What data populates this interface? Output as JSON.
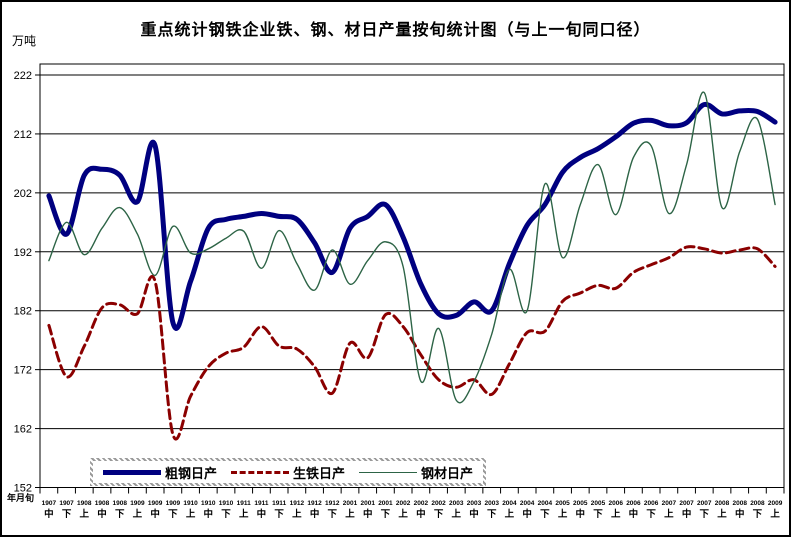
{
  "title": "重点统计钢铁企业铁、钢、材日产量按旬统计图（与上一旬同口径）",
  "y_axis": {
    "unit": "万吨",
    "min": 152,
    "max": 222,
    "step": 10
  },
  "x_axis": {
    "title": "年月旬",
    "months": [
      "1907",
      "1907",
      "1908",
      "1908",
      "1908",
      "1909",
      "1909",
      "1909",
      "1910",
      "1910",
      "1910",
      "1911",
      "1911",
      "1911",
      "1912",
      "1912",
      "1912",
      "2001",
      "2001",
      "2001",
      "2002",
      "2002",
      "2002",
      "2003",
      "2003",
      "2003",
      "2004",
      "2004",
      "2004",
      "2005",
      "2005",
      "2005",
      "2006",
      "2006",
      "2006",
      "2007",
      "2007",
      "2007",
      "2008",
      "2008",
      "2008",
      "2009"
    ],
    "xun": [
      "中",
      "下",
      "上",
      "中",
      "下",
      "上",
      "中",
      "下",
      "上",
      "中",
      "下",
      "上",
      "中",
      "下",
      "上",
      "中",
      "下",
      "上",
      "中",
      "下",
      "上",
      "中",
      "下",
      "上",
      "中",
      "下",
      "上",
      "中",
      "下",
      "上",
      "中",
      "下",
      "上",
      "中",
      "下",
      "上",
      "中",
      "下",
      "上",
      "中",
      "下",
      "上"
    ]
  },
  "legend": {
    "items": [
      {
        "label": "粗钢日产",
        "color": "#000080",
        "style": "solid",
        "thickness": 5
      },
      {
        "label": "生铁日产",
        "color": "#8B0000",
        "style": "dashed",
        "thickness": 3
      },
      {
        "label": "钢材日产",
        "color": "#2D6446",
        "style": "solid",
        "thickness": 1.4
      }
    ]
  },
  "chart_data": {
    "type": "line",
    "title": "重点统计钢铁企业铁、钢、材日产量按旬统计图（与上一旬同口径）",
    "ylabel": "万吨",
    "xlabel": "年月旬",
    "ylim": [
      152,
      222
    ],
    "grid": true,
    "legend_position": "bottom-inside",
    "x": [
      "1907中",
      "1907下",
      "1908上",
      "1908中",
      "1908下",
      "1909上",
      "1909中",
      "1909下",
      "1910上",
      "1910中",
      "1910下",
      "1911上",
      "1911中",
      "1911下",
      "1912上",
      "1912中",
      "1912下",
      "2001上",
      "2001中",
      "2001下",
      "2002上",
      "2002中",
      "2002下",
      "2003上",
      "2003中",
      "2003下",
      "2004上",
      "2004中",
      "2004下",
      "2005上",
      "2005中",
      "2005下",
      "2006上",
      "2006中",
      "2006下",
      "2007上",
      "2007中",
      "2007下",
      "2008上",
      "2008中",
      "2008下",
      "2009上"
    ],
    "series": [
      {
        "name": "粗钢日产",
        "color": "#000080",
        "dash": "solid",
        "width": 5,
        "values": [
          201.5,
          195,
          205,
          206,
          205,
          200.5,
          210,
          180,
          187,
          196,
          197.5,
          198,
          198.5,
          198,
          197.5,
          193.5,
          188.5,
          196,
          198,
          200,
          194.5,
          186.5,
          181.5,
          181.2,
          183.5,
          182,
          190,
          196.5,
          200,
          205.5,
          208,
          209.5,
          211.5,
          213.8,
          214.3,
          213.4,
          213.9,
          217,
          215.4,
          215.9,
          215.8,
          214
        ]
      },
      {
        "name": "生铁日产",
        "color": "#8B0000",
        "dash": "dashed",
        "width": 3,
        "values": [
          179.5,
          170.8,
          176,
          182.5,
          183,
          181.5,
          187,
          161,
          167.5,
          172.5,
          174.8,
          175.8,
          179.3,
          176,
          175.5,
          172.5,
          168,
          176.5,
          174,
          181.3,
          179.3,
          174.5,
          170.3,
          169,
          170.3,
          167.8,
          173,
          178.3,
          178.5,
          183.6,
          185,
          186.3,
          185.8,
          188.5,
          189.8,
          191,
          192.8,
          192.5,
          191.8,
          192.3,
          192.5,
          189.5
        ]
      },
      {
        "name": "钢材日产",
        "color": "#2D6446",
        "dash": "solid",
        "width": 1.4,
        "values": [
          190.5,
          197,
          191.5,
          196,
          199.5,
          195,
          188,
          196.3,
          191.8,
          192.5,
          194.3,
          195.5,
          189.2,
          195.6,
          190,
          185.5,
          192.3,
          186.5,
          190.5,
          193.7,
          189.5,
          170,
          179,
          166.8,
          170,
          178,
          189,
          182,
          203.5,
          191,
          200,
          206.8,
          198.3,
          208,
          210,
          198.5,
          206.8,
          219,
          199.5,
          209,
          214.5,
          200
        ]
      }
    ]
  }
}
